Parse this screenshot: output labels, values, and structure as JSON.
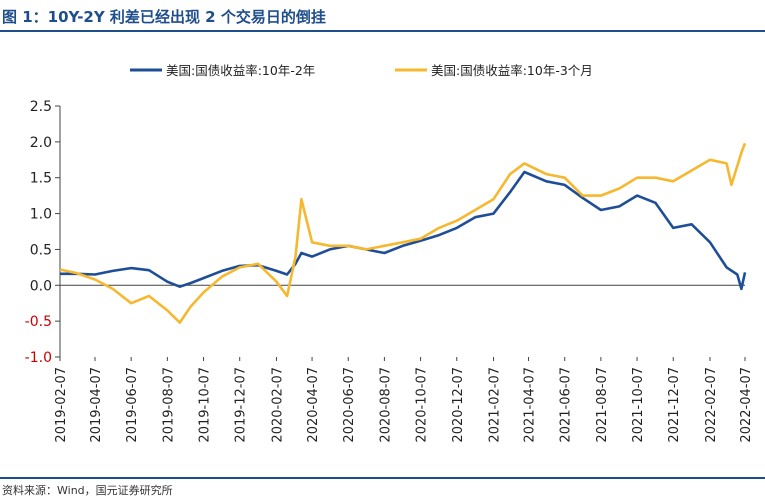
{
  "header": {
    "title": "图 1：10Y-2Y 利差已经出现 2 个交易日的倒挂"
  },
  "footer": {
    "source": "资料来源：Wind，国元证券研究所"
  },
  "chart_data": {
    "type": "line",
    "title": "",
    "xlabel": "",
    "ylabel": "",
    "ylim": [
      -1.0,
      2.5
    ],
    "yticks": [
      "2.5",
      "2.0",
      "1.5",
      "1.0",
      "0.5",
      "0.0",
      "-0.5",
      "-1.0"
    ],
    "x_range": [
      "2019-02-07",
      "2022-04-07"
    ],
    "x_ticks": [
      "2019-02-07",
      "2019-04-07",
      "2019-06-07",
      "2019-08-07",
      "2019-10-07",
      "2019-12-07",
      "2020-02-07",
      "2020-04-07",
      "2020-06-07",
      "2020-08-07",
      "2020-10-07",
      "2020-12-07",
      "2021-02-07",
      "2021-04-07",
      "2021-06-07",
      "2021-08-07",
      "2021-10-07",
      "2021-12-07",
      "2022-02-07",
      "2022-04-07"
    ],
    "legend_position": "top",
    "grid": false,
    "series": [
      {
        "name": "美国:国债收益率:10年-2年",
        "color": "#1f4e99",
        "points": [
          [
            "2019-02-07",
            0.16
          ],
          [
            "2019-03-07",
            0.16
          ],
          [
            "2019-04-07",
            0.15
          ],
          [
            "2019-05-07",
            0.2
          ],
          [
            "2019-06-07",
            0.24
          ],
          [
            "2019-07-07",
            0.21
          ],
          [
            "2019-08-07",
            0.05
          ],
          [
            "2019-08-28",
            -0.02
          ],
          [
            "2019-09-15",
            0.03
          ],
          [
            "2019-10-07",
            0.1
          ],
          [
            "2019-11-07",
            0.2
          ],
          [
            "2019-12-07",
            0.27
          ],
          [
            "2020-01-07",
            0.28
          ],
          [
            "2020-02-07",
            0.2
          ],
          [
            "2020-02-25",
            0.15
          ],
          [
            "2020-03-10",
            0.3
          ],
          [
            "2020-03-20",
            0.45
          ],
          [
            "2020-04-07",
            0.4
          ],
          [
            "2020-05-07",
            0.5
          ],
          [
            "2020-06-07",
            0.55
          ],
          [
            "2020-07-07",
            0.5
          ],
          [
            "2020-08-07",
            0.45
          ],
          [
            "2020-09-07",
            0.55
          ],
          [
            "2020-10-07",
            0.62
          ],
          [
            "2020-11-07",
            0.7
          ],
          [
            "2020-12-07",
            0.8
          ],
          [
            "2021-01-07",
            0.95
          ],
          [
            "2021-02-07",
            1.0
          ],
          [
            "2021-03-07",
            1.3
          ],
          [
            "2021-03-31",
            1.58
          ],
          [
            "2021-05-07",
            1.45
          ],
          [
            "2021-06-07",
            1.4
          ],
          [
            "2021-07-07",
            1.22
          ],
          [
            "2021-08-07",
            1.05
          ],
          [
            "2021-09-07",
            1.1
          ],
          [
            "2021-10-07",
            1.25
          ],
          [
            "2021-11-07",
            1.15
          ],
          [
            "2021-12-07",
            0.8
          ],
          [
            "2022-01-07",
            0.85
          ],
          [
            "2022-02-07",
            0.6
          ],
          [
            "2022-03-07",
            0.25
          ],
          [
            "2022-03-25",
            0.15
          ],
          [
            "2022-04-01",
            -0.05
          ],
          [
            "2022-04-07",
            0.18
          ]
        ]
      },
      {
        "name": "美国:国债收益率:10年-3个月",
        "color": "#f5b82e",
        "points": [
          [
            "2019-02-07",
            0.22
          ],
          [
            "2019-03-07",
            0.17
          ],
          [
            "2019-04-07",
            0.08
          ],
          [
            "2019-05-07",
            -0.05
          ],
          [
            "2019-06-07",
            -0.25
          ],
          [
            "2019-07-07",
            -0.15
          ],
          [
            "2019-08-07",
            -0.35
          ],
          [
            "2019-08-28",
            -0.52
          ],
          [
            "2019-09-15",
            -0.3
          ],
          [
            "2019-10-07",
            -0.1
          ],
          [
            "2019-11-07",
            0.12
          ],
          [
            "2019-12-07",
            0.25
          ],
          [
            "2020-01-07",
            0.3
          ],
          [
            "2020-02-07",
            0.05
          ],
          [
            "2020-02-25",
            -0.15
          ],
          [
            "2020-03-10",
            0.4
          ],
          [
            "2020-03-20",
            1.2
          ],
          [
            "2020-04-07",
            0.6
          ],
          [
            "2020-05-07",
            0.55
          ],
          [
            "2020-06-07",
            0.55
          ],
          [
            "2020-07-07",
            0.5
          ],
          [
            "2020-08-07",
            0.55
          ],
          [
            "2020-09-07",
            0.6
          ],
          [
            "2020-10-07",
            0.65
          ],
          [
            "2020-11-07",
            0.8
          ],
          [
            "2020-12-07",
            0.9
          ],
          [
            "2021-01-07",
            1.05
          ],
          [
            "2021-02-07",
            1.2
          ],
          [
            "2021-03-07",
            1.55
          ],
          [
            "2021-03-31",
            1.7
          ],
          [
            "2021-05-07",
            1.55
          ],
          [
            "2021-06-07",
            1.5
          ],
          [
            "2021-07-07",
            1.25
          ],
          [
            "2021-08-07",
            1.25
          ],
          [
            "2021-09-07",
            1.35
          ],
          [
            "2021-10-07",
            1.5
          ],
          [
            "2021-11-07",
            1.5
          ],
          [
            "2021-12-07",
            1.45
          ],
          [
            "2022-01-07",
            1.6
          ],
          [
            "2022-02-07",
            1.75
          ],
          [
            "2022-03-07",
            1.7
          ],
          [
            "2022-03-15",
            1.4
          ],
          [
            "2022-04-01",
            1.85
          ],
          [
            "2022-04-07",
            1.98
          ]
        ]
      }
    ]
  }
}
